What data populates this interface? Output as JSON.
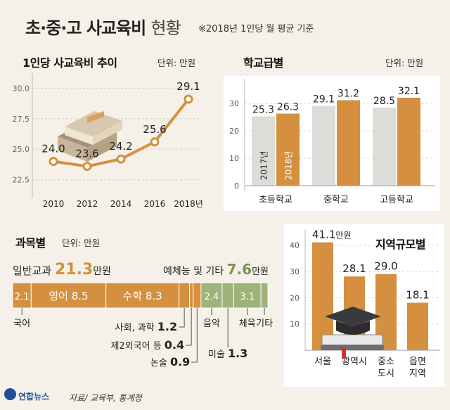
{
  "header": {
    "title_main": "초·중·고 사교육비",
    "title_light": "현황",
    "note": "※2018년 1인당 월 평균 기준"
  },
  "footer": {
    "logo_text": "연합뉴스",
    "source": "자료/ 교육부, 통계청"
  },
  "colors": {
    "orange": "#d4903e",
    "gray": "#dcdcd8",
    "green": "#9fb27a",
    "brown": "#8b6a3e"
  },
  "chart_data": [
    {
      "id": "trend",
      "type": "line",
      "title": "1인당 사교육비 추이",
      "unit": "단위: 만원",
      "x": [
        "2010",
        "2012",
        "2014",
        "2016",
        "2018년"
      ],
      "values": [
        24.0,
        23.6,
        24.2,
        25.6,
        29.1
      ],
      "value_labels": [
        "24.0",
        "23.6",
        "24.2",
        "25.6",
        "29.1"
      ],
      "yticks": [
        "30.0",
        "27.5",
        "25.0",
        "22.5"
      ],
      "ytick_values": [
        30.0,
        27.5,
        25.0,
        22.5
      ],
      "ylim": [
        21.5,
        31.0
      ]
    },
    {
      "id": "school",
      "type": "bar",
      "title": "학교급별",
      "unit": "단위: 만원",
      "categories": [
        "초등학교",
        "중학교",
        "고등학교"
      ],
      "series": [
        {
          "name": "2017년",
          "values": [
            25.3,
            29.1,
            28.5
          ],
          "labels": [
            "25.3",
            "29.1",
            "28.5"
          ]
        },
        {
          "name": "2018년",
          "values": [
            26.3,
            31.2,
            32.1
          ],
          "labels": [
            "26.3",
            "31.2",
            "32.1"
          ]
        }
      ],
      "yticks": [
        "30",
        "20",
        "10",
        "0"
      ],
      "ytick_values": [
        30,
        20,
        10,
        0
      ],
      "ylim": [
        0,
        38
      ]
    },
    {
      "id": "subject",
      "type": "bar",
      "title": "과목별",
      "unit": "단위: 만원",
      "group1_label": "일반교과",
      "group1_value": "21.3",
      "group1_suffix": "만원",
      "group2_label": "예체능 및 기타",
      "group2_value": "7.6",
      "group2_suffix": "만원",
      "segments": [
        {
          "name": "국어",
          "value": 2.1,
          "group": 1,
          "label": "2.1",
          "callout": "국어"
        },
        {
          "name": "영어",
          "value": 8.5,
          "group": 1,
          "label": "8.5",
          "bar_name": "영어"
        },
        {
          "name": "수학",
          "value": 8.3,
          "group": 1,
          "label": "8.3",
          "bar_name": "수학"
        },
        {
          "name": "사회, 과학",
          "value": 1.2,
          "group": 1,
          "callout": "사회, 과학",
          "callout_value": "1.2"
        },
        {
          "name": "제2외국어 등",
          "value": 0.4,
          "group": 1,
          "callout": "제2외국어 등",
          "callout_value": "0.4"
        },
        {
          "name": "논술",
          "value": 0.9,
          "group": 1,
          "callout": "논술",
          "callout_value": "0.9"
        },
        {
          "name": "음악",
          "value": 2.4,
          "group": 2,
          "label": "2.4",
          "callout": "음악"
        },
        {
          "name": "미술",
          "value": 1.3,
          "group": 2,
          "callout": "미술",
          "callout_value": "1.3"
        },
        {
          "name": "체육",
          "value": 3.1,
          "group": 2,
          "label": "3.1",
          "callout": "체육"
        },
        {
          "name": "기타",
          "value": 0.8,
          "group": 2,
          "callout": "기타"
        }
      ]
    },
    {
      "id": "region",
      "type": "bar",
      "title": "지역규모별",
      "categories": [
        "서울",
        "광역시",
        "중소\n도시",
        "읍면\n지역"
      ],
      "values": [
        41.1,
        28.1,
        29.0,
        18.1
      ],
      "labels": [
        "41.1",
        "28.1",
        "29.0",
        "18.1"
      ],
      "first_suffix": "만원",
      "yticks": [
        "40",
        "30",
        "20",
        "10"
      ],
      "ytick_values": [
        40,
        30,
        20,
        10
      ],
      "ylim": [
        0,
        45
      ]
    }
  ]
}
